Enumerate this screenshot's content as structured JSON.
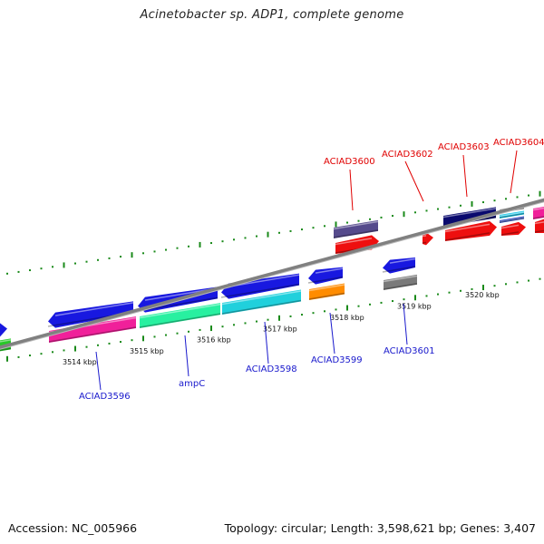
{
  "title": "Acinetobacter sp. ADP1, complete genome",
  "footer": {
    "accession": "Accession: NC_005966",
    "summary": "Topology: circular; Length: 3,598,621 bp; Genes: 3,407"
  },
  "colors": {
    "backbone": "#808080",
    "tick": "#1a8a1a",
    "label_top": "#e00000",
    "label_bottom": "#1818cc"
  },
  "ticks": [
    {
      "kbp": 3514,
      "label": "3514 kbp"
    },
    {
      "kbp": 3515,
      "label": "3515 kbp"
    },
    {
      "kbp": 3516,
      "label": "3516 kbp"
    },
    {
      "kbp": 3517,
      "label": "3517 kbp"
    },
    {
      "kbp": 3518,
      "label": "3518 kbp"
    },
    {
      "kbp": 3519,
      "label": "3519 kbp"
    },
    {
      "kbp": 3520,
      "label": "3520 kbp"
    }
  ],
  "gene_labels_top": [
    "ACIAD3600",
    "ACIAD3602",
    "ACIAD3603",
    "ACIAD3604"
  ],
  "gene_labels_bottom": [
    "ACIAD3596",
    "ampC",
    "ACIAD3598",
    "ACIAD3599",
    "ACIAD3601"
  ]
}
